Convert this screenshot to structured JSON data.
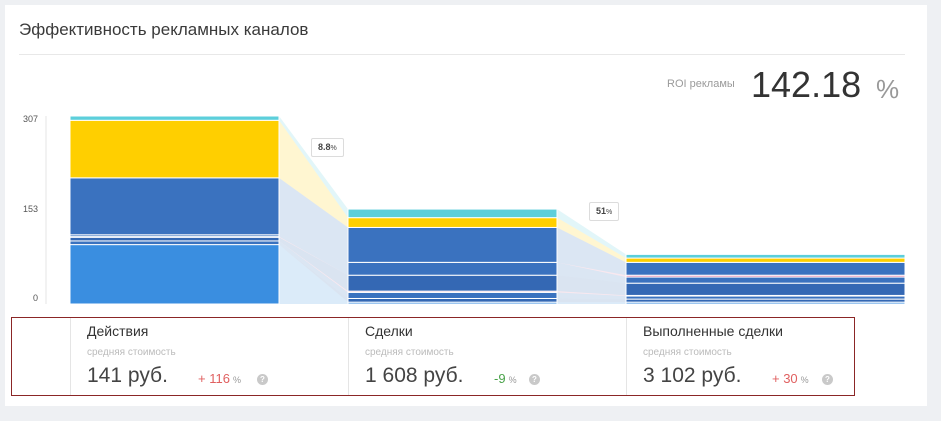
{
  "widget": {
    "title": "Эффективность рекламных каналов",
    "roi_label": "ROI рекламы",
    "roi_value": "142.18",
    "roi_unit": "%"
  },
  "chart_data": {
    "type": "bar",
    "stacked": true,
    "ylim": [
      0,
      307
    ],
    "yticks": [
      "307",
      "153",
      "0"
    ],
    "colors": [
      "#3a8ee0",
      "#3468b4",
      "#e07fa6",
      "#3a72bf",
      "#ffcf00",
      "#5ccfdb"
    ],
    "categories": [
      "Действия",
      "Сделки",
      "Выполненные сделки"
    ],
    "series": [
      {
        "values": [
          97,
          3,
          3
        ]
      },
      {
        "values": [
          0,
          6,
          5
        ]
      },
      {
        "values": [
          6,
          10,
          5
        ]
      },
      {
        "values": [
          0,
          2,
          1
        ]
      },
      {
        "values": [
          6,
          26,
          20
        ]
      },
      {
        "values": [
          1,
          0,
          0
        ]
      },
      {
        "values": [
          3,
          21,
          10
        ]
      },
      {
        "values": [
          0,
          0,
          3
        ]
      },
      {
        "values": [
          93,
          57,
          21
        ]
      },
      {
        "values": [
          94,
          16,
          7
        ]
      },
      {
        "values": [
          7,
          14,
          6
        ]
      }
    ],
    "series_colors": [
      "#3a8ee0",
      "#3468b4",
      "#3a72bf",
      "#e07fa6",
      "#3468b4",
      "#e07fa6",
      "#3a72bf",
      "#e07fa6",
      "#3a72bf",
      "#ffcf00",
      "#5ccfdb"
    ],
    "conversions": [
      "8.8",
      "51"
    ],
    "conversion_unit": "%"
  },
  "stages": [
    {
      "name": "Действия",
      "sub": "средняя стоимость",
      "cost": "141 руб.",
      "change": "+ 116",
      "change_color": "#e06060"
    },
    {
      "name": "Сделки",
      "sub": "средняя стоимость",
      "cost": "1 608 руб.",
      "change": "-9",
      "change_color": "#4aa34a"
    },
    {
      "name": "Выполненные сделки",
      "sub": "средняя стоимость",
      "cost": "3 102 руб.",
      "change": "+ 30",
      "change_color": "#e06060"
    }
  ],
  "pct_sign": "%",
  "help_glyph": "?"
}
